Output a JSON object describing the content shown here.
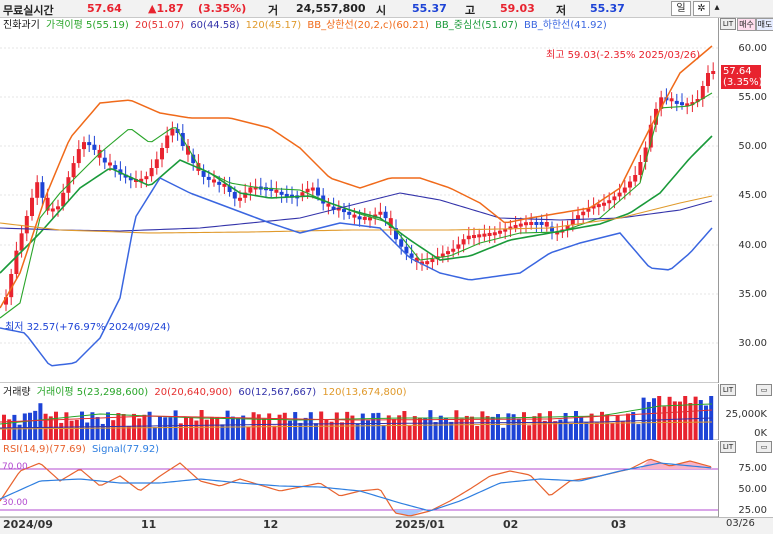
{
  "topbar": {
    "label": "무료실시간",
    "price": "57.64",
    "change": "▲1.87",
    "change_pct": "(3.35%)",
    "vol_label": "거",
    "vol": "24,557,800",
    "open_label": "시",
    "open": "55.37",
    "high_label": "고",
    "high": "59.03",
    "low_label": "저",
    "low": "55.37",
    "period_btn": "일",
    "settings_icon": "gear-icon"
  },
  "price_panel": {
    "legend": [
      "진화과기",
      "가격이평 5(55.19)",
      "20(51.07)",
      "60(44.58)",
      "120(45.17)",
      "BB_상한선(20,2,c)(60.21)",
      "BB_중심선(51.07)",
      "BB_하한선(41.92)"
    ],
    "buy_btn": "매수",
    "sell_btn": "매도",
    "yticks": [
      "60.00",
      "55.00",
      "50.00",
      "45.00",
      "40.00",
      "35.00",
      "30.00"
    ],
    "current_price": "57.64",
    "current_pct": "(3.35%)",
    "max_annot": "최고 59.03(-2.35% 2025/03/26)",
    "min_annot": "최저 32.57(+76.97% 2024/09/24)"
  },
  "volume_panel": {
    "legend": [
      "거래량",
      "거래이평 5(23,298,600)",
      "20(20,640,900)",
      "60(12,567,667)",
      "120(13,674,800)"
    ],
    "yticks": [
      "25,000K",
      "0K"
    ]
  },
  "rsi_panel": {
    "legend": [
      "RSI(14,9)(77.69)",
      "Signal(77.92)"
    ],
    "yticks": [
      "75.00",
      "50.00",
      "25.00"
    ],
    "band_hi": "70.00",
    "band_lo": "30.00"
  },
  "xaxis": {
    "labels": [
      "2024/09",
      "11",
      "12",
      "2025/01",
      "02",
      "03"
    ],
    "last": "03/26"
  },
  "colors": {
    "up": "#e8232f",
    "down": "#1d43d6",
    "ma5": "#2aa52a",
    "ma20": "#e53030",
    "ma60": "#3333aa",
    "ma120": "#e09a2c",
    "bb_up": "#f06a1a",
    "bb_mid": "#1a9a3a",
    "bb_low": "#3a66e0"
  }
}
